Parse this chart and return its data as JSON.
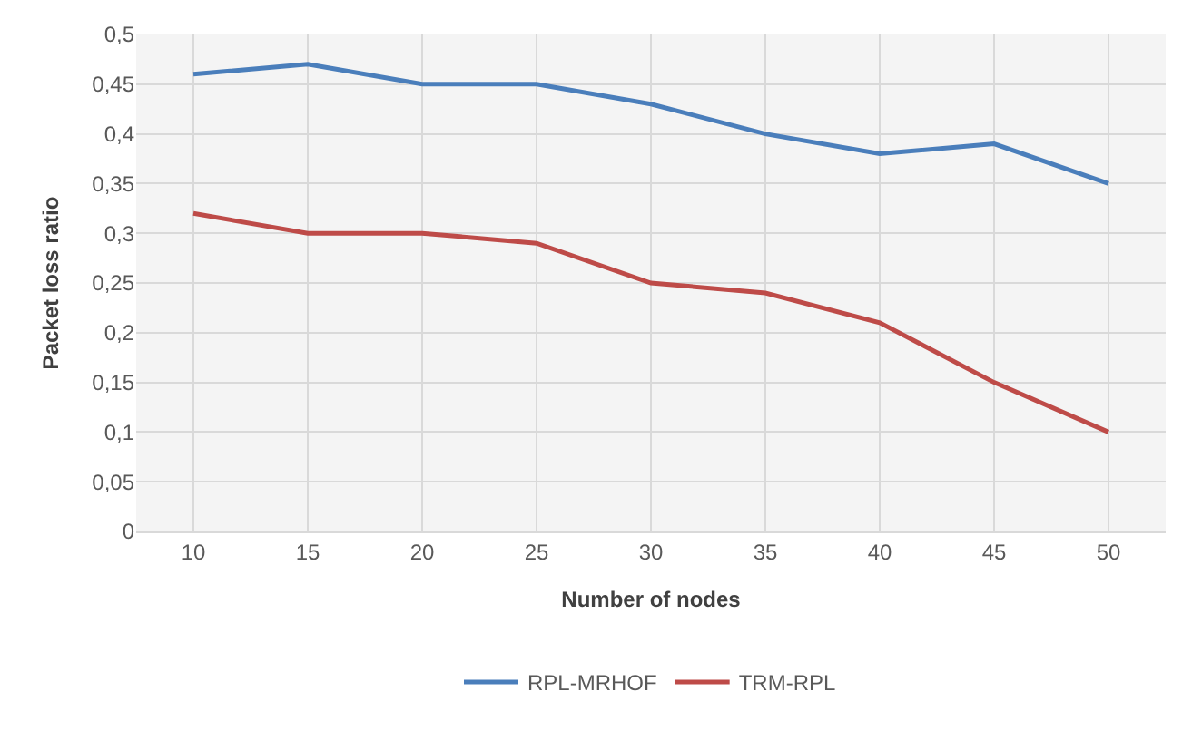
{
  "chart_data": {
    "type": "line",
    "xlabel": "Number of nodes",
    "ylabel": "Packet loss ratio",
    "categories": [
      "10",
      "15",
      "20",
      "25",
      "30",
      "35",
      "40",
      "45",
      "50"
    ],
    "series": [
      {
        "name": "RPL-MRHOF",
        "color": "#4a7ebb",
        "values": [
          0.46,
          0.47,
          0.45,
          0.45,
          0.43,
          0.4,
          0.38,
          0.39,
          0.35
        ]
      },
      {
        "name": "TRM-RPL",
        "color": "#be4b48",
        "values": [
          0.32,
          0.3,
          0.3,
          0.29,
          0.25,
          0.24,
          0.21,
          0.15,
          0.1
        ]
      }
    ],
    "ylim": [
      0,
      0.5
    ],
    "yticks": [
      0,
      {
        "value": 0.05,
        "label": "0,05"
      },
      {
        "value": 0.1,
        "label": "0,1"
      },
      {
        "value": 0.15,
        "label": "0,15"
      },
      {
        "value": 0.2,
        "label": "0,2"
      },
      {
        "value": 0.25,
        "label": "0,25"
      },
      {
        "value": 0.3,
        "label": "0,3"
      },
      {
        "value": 0.35,
        "label": "0,35"
      },
      {
        "value": 0.4,
        "label": "0,4"
      },
      {
        "value": 0.45,
        "label": "0,45"
      },
      {
        "value": 0.5,
        "label": "0,5"
      }
    ],
    "grid": true,
    "legend": "bottom",
    "marker": "none",
    "line_style": "solid"
  }
}
